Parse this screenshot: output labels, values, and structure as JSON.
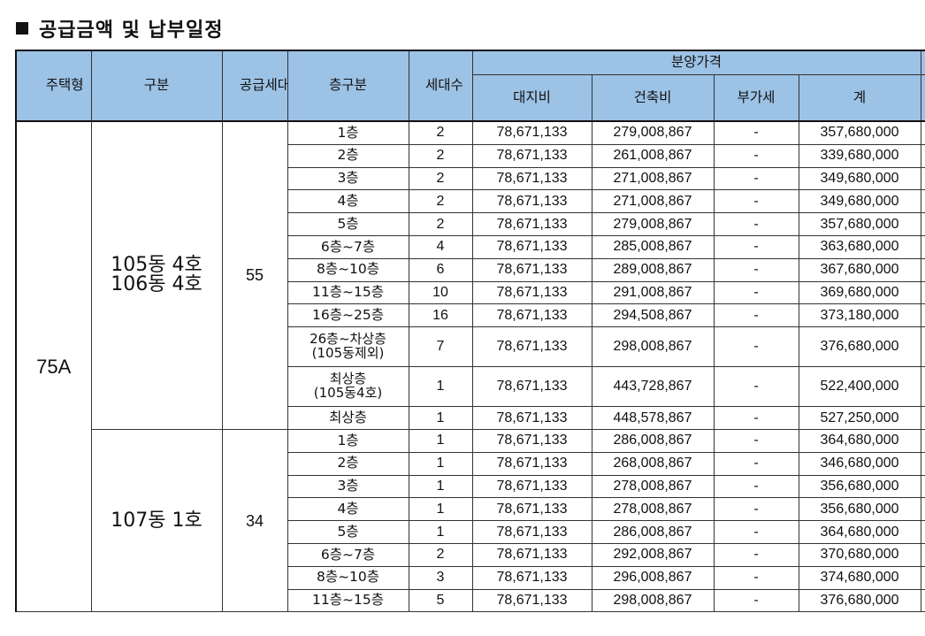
{
  "title": "공급금액 및 납부일정",
  "headers": {
    "type": "주택형",
    "division": "구분",
    "supply_units": "공급세대수",
    "floor": "층구분",
    "units": "세대수",
    "price_group": "분양가격",
    "land": "대지비",
    "building": "건축비",
    "vat": "부가세",
    "total": "계"
  },
  "type": "75A",
  "groups": [
    {
      "division_line1": "105동 4호",
      "division_line2": "106동 4호",
      "supply_units": "55",
      "rows": [
        {
          "floor": "1층",
          "units": "2",
          "land": "78,671,133",
          "building": "279,008,867",
          "vat": "-",
          "total": "357,680,000"
        },
        {
          "floor": "2층",
          "units": "2",
          "land": "78,671,133",
          "building": "261,008,867",
          "vat": "-",
          "total": "339,680,000"
        },
        {
          "floor": "3층",
          "units": "2",
          "land": "78,671,133",
          "building": "271,008,867",
          "vat": "-",
          "total": "349,680,000"
        },
        {
          "floor": "4층",
          "units": "2",
          "land": "78,671,133",
          "building": "271,008,867",
          "vat": "-",
          "total": "349,680,000"
        },
        {
          "floor": "5층",
          "units": "2",
          "land": "78,671,133",
          "building": "279,008,867",
          "vat": "-",
          "total": "357,680,000"
        },
        {
          "floor": "6층~7층",
          "units": "4",
          "land": "78,671,133",
          "building": "285,008,867",
          "vat": "-",
          "total": "363,680,000"
        },
        {
          "floor": "8층~10층",
          "units": "6",
          "land": "78,671,133",
          "building": "289,008,867",
          "vat": "-",
          "total": "367,680,000"
        },
        {
          "floor": "11층~15층",
          "units": "10",
          "land": "78,671,133",
          "building": "291,008,867",
          "vat": "-",
          "total": "369,680,000"
        },
        {
          "floor": "16층~25층",
          "units": "16",
          "land": "78,671,133",
          "building": "294,508,867",
          "vat": "-",
          "total": "373,180,000"
        },
        {
          "floor": "26층~차상층",
          "floor2": "(105동제외)",
          "units": "7",
          "land": "78,671,133",
          "building": "298,008,867",
          "vat": "-",
          "total": "376,680,000"
        },
        {
          "floor": "최상층",
          "floor2": "(105동4호)",
          "units": "1",
          "land": "78,671,133",
          "building": "443,728,867",
          "vat": "-",
          "total": "522,400,000"
        },
        {
          "floor": "최상층",
          "units": "1",
          "land": "78,671,133",
          "building": "448,578,867",
          "vat": "-",
          "total": "527,250,000"
        }
      ]
    },
    {
      "division_line1": "107동 1호",
      "supply_units": "34",
      "rows": [
        {
          "floor": "1층",
          "units": "1",
          "land": "78,671,133",
          "building": "286,008,867",
          "vat": "-",
          "total": "364,680,000"
        },
        {
          "floor": "2층",
          "units": "1",
          "land": "78,671,133",
          "building": "268,008,867",
          "vat": "-",
          "total": "346,680,000"
        },
        {
          "floor": "3층",
          "units": "1",
          "land": "78,671,133",
          "building": "278,008,867",
          "vat": "-",
          "total": "356,680,000"
        },
        {
          "floor": "4층",
          "units": "1",
          "land": "78,671,133",
          "building": "278,008,867",
          "vat": "-",
          "total": "356,680,000"
        },
        {
          "floor": "5층",
          "units": "1",
          "land": "78,671,133",
          "building": "286,008,867",
          "vat": "-",
          "total": "364,680,000"
        },
        {
          "floor": "6층~7층",
          "units": "2",
          "land": "78,671,133",
          "building": "292,008,867",
          "vat": "-",
          "total": "370,680,000"
        },
        {
          "floor": "8층~10층",
          "units": "3",
          "land": "78,671,133",
          "building": "296,008,867",
          "vat": "-",
          "total": "374,680,000"
        },
        {
          "floor": "11층~15층",
          "units": "5",
          "land": "78,671,133",
          "building": "298,008,867",
          "vat": "-",
          "total": "376,680,000"
        }
      ]
    }
  ]
}
